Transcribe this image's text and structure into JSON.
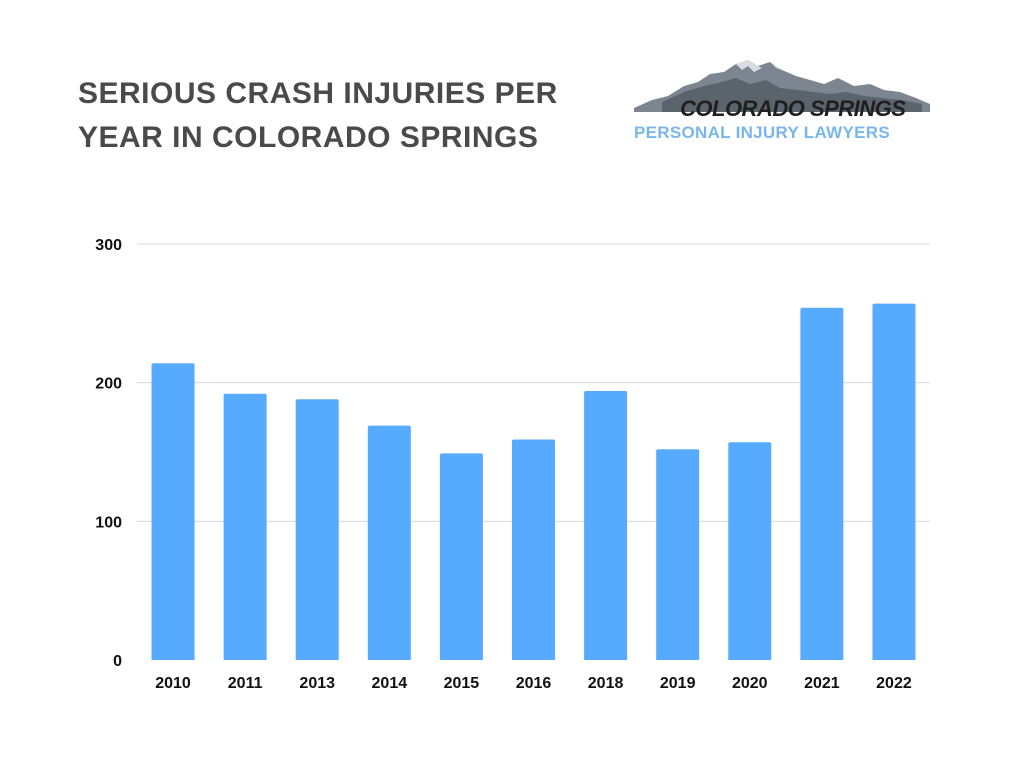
{
  "header": {
    "title_line1": "SERIOUS CRASH INJURIES PER",
    "title_line2": "YEAR IN COLORADO SPRINGS"
  },
  "logo": {
    "line1": "COLORADO SPRINGS",
    "line2": "PERSONAL INJURY LAWYERS",
    "line2_color": "#79b6ee"
  },
  "chart_data": {
    "type": "bar",
    "categories": [
      "2010",
      "2011",
      "2013",
      "2014",
      "2015",
      "2016",
      "2018",
      "2019",
      "2020",
      "2021",
      "2022"
    ],
    "values": [
      214,
      192,
      188,
      169,
      149,
      159,
      194,
      152,
      157,
      254,
      257
    ],
    "ylim": [
      0,
      300
    ],
    "yticks": [
      0,
      100,
      200,
      300
    ],
    "grid": true,
    "bar_color": "#57abfe",
    "legend": "none"
  }
}
